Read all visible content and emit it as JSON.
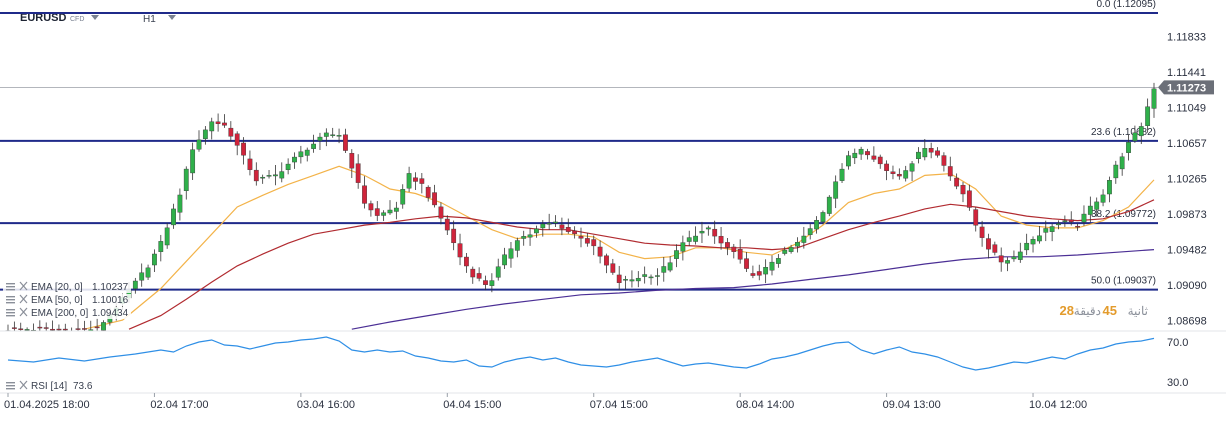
{
  "header": {
    "symbol": "EURUSD",
    "instrument_type": "CFD",
    "timeframe": "H1"
  },
  "colors": {
    "bull": "#2fb04a",
    "bear": "#d0243b",
    "fib": "#1f2a8a",
    "ema20": "#f3b349",
    "ema50": "#b12b30",
    "ema200": "#4b2f95",
    "rsi": "#2f8fe6",
    "price_tag": "#6b6f78"
  },
  "chart_data": {
    "type": "candlestick",
    "ylim": [
      1.0858,
      1.1215
    ],
    "y_ticks": [
      {
        "value": 1.11833,
        "label": "1.11833"
      },
      {
        "value": 1.11441,
        "label": "1.11441"
      },
      {
        "value": 1.11049,
        "label": "1.11049"
      },
      {
        "value": 1.10657,
        "label": "1.10657"
      },
      {
        "value": 1.10265,
        "label": "1.10265"
      },
      {
        "value": 1.09873,
        "label": "1.09873"
      },
      {
        "value": 1.09482,
        "label": "1.09482"
      },
      {
        "value": 1.0909,
        "label": "1.09090"
      },
      {
        "value": 1.08698,
        "label": "1.08698"
      }
    ],
    "x_ticks": [
      {
        "index": 0,
        "label": "01.04.2025  18:00"
      },
      {
        "index": 23,
        "label": "02.04  17:00"
      },
      {
        "index": 46,
        "label": "03.04  16:00"
      },
      {
        "index": 69,
        "label": "04.04  15:00"
      },
      {
        "index": 92,
        "label": "07.04  15:00"
      },
      {
        "index": 115,
        "label": "08.04  14:00"
      },
      {
        "index": 138,
        "label": "09.04  13:00"
      },
      {
        "index": 161,
        "label": "10.04  12:00"
      }
    ],
    "current_price": {
      "value": 1.11273,
      "label": "1.11273"
    },
    "fib_levels": [
      {
        "value": 1.12095,
        "label": "0.0 (1.12095)"
      },
      {
        "value": 1.10682,
        "label": "23.6 (1.10682)"
      },
      {
        "value": 1.09772,
        "label": "38.2 (1.09772)"
      },
      {
        "value": 1.09037,
        "label": "50.0 (1.09037)"
      }
    ],
    "indicators": [
      {
        "key": "ema20",
        "label": "EMA [20, 0]",
        "value": "1.10237"
      },
      {
        "key": "ema50",
        "label": "EMA [50, 0]",
        "value": "1.10016"
      },
      {
        "key": "ema200",
        "label": "EMA [200, 0]",
        "value": "1.09434"
      }
    ],
    "rsi": {
      "label": "RSI [14]",
      "value": "73.6",
      "ylim": [
        20,
        80
      ],
      "ticks": [
        {
          "value": 70,
          "label": "70.0"
        },
        {
          "value": 30,
          "label": "30.0"
        }
      ]
    },
    "close_path": [
      [
        0,
        1.086
      ],
      [
        14,
        1.086
      ],
      [
        18,
        1.0893
      ],
      [
        22,
        1.093
      ],
      [
        24,
        1.0955
      ],
      [
        27,
        1.101
      ],
      [
        29,
        1.106
      ],
      [
        32,
        1.109
      ],
      [
        34,
        1.1085
      ],
      [
        35,
        1.1075
      ],
      [
        37,
        1.105
      ],
      [
        39,
        1.1025
      ],
      [
        42,
        1.103
      ],
      [
        46,
        1.1055
      ],
      [
        50,
        1.1075
      ],
      [
        52,
        1.1075
      ],
      [
        54,
        1.104
      ],
      [
        56,
        1.1
      ],
      [
        58,
        1.0985
      ],
      [
        61,
        1.0995
      ],
      [
        63,
        1.103
      ],
      [
        65,
        1.102
      ],
      [
        67,
        1.0995
      ],
      [
        69,
        1.097
      ],
      [
        71,
        1.094
      ],
      [
        73,
        1.092
      ],
      [
        75,
        1.091
      ],
      [
        76,
        1.0915
      ],
      [
        78,
        1.094
      ],
      [
        80,
        1.096
      ],
      [
        82,
        1.0965
      ],
      [
        84,
        1.0975
      ],
      [
        86,
        1.0978
      ],
      [
        88,
        1.0968
      ],
      [
        90,
        1.0962
      ],
      [
        92,
        1.095
      ],
      [
        94,
        1.093
      ],
      [
        96,
        1.0912
      ],
      [
        98,
        1.0915
      ],
      [
        100,
        1.092
      ],
      [
        102,
        1.092
      ],
      [
        104,
        1.0935
      ],
      [
        106,
        1.0955
      ],
      [
        108,
        1.0965
      ],
      [
        110,
        1.097
      ],
      [
        112,
        1.0955
      ],
      [
        114,
        1.0945
      ],
      [
        116,
        1.0925
      ],
      [
        118,
        1.0918
      ],
      [
        120,
        1.0935
      ],
      [
        122,
        1.0945
      ],
      [
        124,
        1.0955
      ],
      [
        126,
        1.097
      ],
      [
        128,
        1.099
      ],
      [
        130,
        1.1025
      ],
      [
        132,
        1.105
      ],
      [
        134,
        1.106
      ],
      [
        136,
        1.105
      ],
      [
        138,
        1.1035
      ],
      [
        140,
        1.103
      ],
      [
        142,
        1.1045
      ],
      [
        144,
        1.1062
      ],
      [
        146,
        1.1052
      ],
      [
        148,
        1.103
      ],
      [
        150,
        1.101
      ],
      [
        152,
        1.0975
      ],
      [
        154,
        1.095
      ],
      [
        156,
        1.0935
      ],
      [
        158,
        1.094
      ],
      [
        160,
        1.0955
      ],
      [
        162,
        1.0965
      ],
      [
        164,
        1.0975
      ],
      [
        166,
        1.0978
      ],
      [
        168,
        1.0975
      ],
      [
        170,
        1.0995
      ],
      [
        172,
        1.101
      ],
      [
        174,
        1.104
      ],
      [
        176,
        1.1065
      ],
      [
        178,
        1.1085
      ],
      [
        180,
        1.1127
      ]
    ],
    "ema20_path": [
      [
        12,
        1.086
      ],
      [
        18,
        1.087
      ],
      [
        24,
        1.0905
      ],
      [
        28,
        1.0935
      ],
      [
        32,
        1.0965
      ],
      [
        36,
        1.0995
      ],
      [
        40,
        1.1008
      ],
      [
        44,
        1.102
      ],
      [
        48,
        1.103
      ],
      [
        52,
        1.104
      ],
      [
        56,
        1.103
      ],
      [
        60,
        1.1015
      ],
      [
        64,
        1.101
      ],
      [
        68,
        1.1
      ],
      [
        72,
        1.0985
      ],
      [
        76,
        1.097
      ],
      [
        80,
        1.096
      ],
      [
        84,
        1.0965
      ],
      [
        88,
        1.0965
      ],
      [
        92,
        1.0962
      ],
      [
        96,
        1.0945
      ],
      [
        100,
        1.0938
      ],
      [
        104,
        1.094
      ],
      [
        108,
        1.095
      ],
      [
        112,
        1.095
      ],
      [
        116,
        1.0945
      ],
      [
        120,
        1.0942
      ],
      [
        124,
        1.0955
      ],
      [
        128,
        1.0975
      ],
      [
        132,
        1.1
      ],
      [
        136,
        1.101
      ],
      [
        140,
        1.1015
      ],
      [
        144,
        1.103
      ],
      [
        148,
        1.1032
      ],
      [
        152,
        1.1015
      ],
      [
        156,
        1.0985
      ],
      [
        160,
        1.0975
      ],
      [
        164,
        1.0972
      ],
      [
        168,
        1.0972
      ],
      [
        172,
        1.098
      ],
      [
        176,
        1.0995
      ],
      [
        180,
        1.1025
      ]
    ],
    "ema50_path": [
      [
        19,
        1.086
      ],
      [
        24,
        1.0875
      ],
      [
        28,
        1.0893
      ],
      [
        32,
        1.0912
      ],
      [
        36,
        1.093
      ],
      [
        40,
        1.0943
      ],
      [
        44,
        1.0955
      ],
      [
        48,
        1.0965
      ],
      [
        52,
        1.097
      ],
      [
        56,
        1.0975
      ],
      [
        60,
        1.0978
      ],
      [
        64,
        1.0982
      ],
      [
        68,
        1.0985
      ],
      [
        72,
        1.0983
      ],
      [
        76,
        1.0978
      ],
      [
        80,
        1.0973
      ],
      [
        84,
        1.097
      ],
      [
        88,
        1.097
      ],
      [
        92,
        1.0965
      ],
      [
        96,
        1.096
      ],
      [
        100,
        1.0955
      ],
      [
        104,
        1.0953
      ],
      [
        108,
        1.0952
      ],
      [
        112,
        1.095
      ],
      [
        116,
        1.095
      ],
      [
        120,
        1.0948
      ],
      [
        124,
        1.095
      ],
      [
        128,
        1.096
      ],
      [
        132,
        1.097
      ],
      [
        136,
        1.0978
      ],
      [
        140,
        1.0985
      ],
      [
        144,
        1.0993
      ],
      [
        148,
        1.0998
      ],
      [
        152,
        1.0995
      ],
      [
        156,
        1.099
      ],
      [
        160,
        1.0985
      ],
      [
        164,
        1.0982
      ],
      [
        168,
        1.098
      ],
      [
        172,
        1.0982
      ],
      [
        176,
        1.099
      ],
      [
        180,
        1.1003
      ]
    ],
    "ema200_path": [
      [
        54,
        1.086
      ],
      [
        60,
        1.0868
      ],
      [
        66,
        1.0875
      ],
      [
        72,
        1.0882
      ],
      [
        78,
        1.0888
      ],
      [
        84,
        1.0893
      ],
      [
        90,
        1.0898
      ],
      [
        96,
        1.09
      ],
      [
        102,
        1.0903
      ],
      [
        108,
        1.0905
      ],
      [
        114,
        1.0906
      ],
      [
        120,
        1.091
      ],
      [
        126,
        1.0915
      ],
      [
        132,
        1.092
      ],
      [
        138,
        1.0926
      ],
      [
        144,
        1.0932
      ],
      [
        150,
        1.0937
      ],
      [
        156,
        1.094
      ],
      [
        162,
        1.094
      ],
      [
        168,
        1.0942
      ],
      [
        174,
        1.0945
      ],
      [
        180,
        1.0948
      ]
    ],
    "rsi_path": [
      [
        0,
        52
      ],
      [
        4,
        50
      ],
      [
        8,
        54
      ],
      [
        12,
        51
      ],
      [
        16,
        55
      ],
      [
        20,
        58
      ],
      [
        24,
        62
      ],
      [
        26,
        60
      ],
      [
        28,
        66
      ],
      [
        30,
        70
      ],
      [
        32,
        72
      ],
      [
        34,
        67
      ],
      [
        36,
        66
      ],
      [
        38,
        63
      ],
      [
        40,
        66
      ],
      [
        42,
        69
      ],
      [
        44,
        70
      ],
      [
        46,
        72
      ],
      [
        48,
        73
      ],
      [
        50,
        75
      ],
      [
        52,
        71
      ],
      [
        54,
        62
      ],
      [
        56,
        60
      ],
      [
        58,
        62
      ],
      [
        60,
        60
      ],
      [
        62,
        61
      ],
      [
        64,
        56
      ],
      [
        66,
        54
      ],
      [
        68,
        51
      ],
      [
        70,
        50
      ],
      [
        72,
        52
      ],
      [
        74,
        46
      ],
      [
        76,
        45
      ],
      [
        78,
        50
      ],
      [
        80,
        53
      ],
      [
        82,
        55
      ],
      [
        84,
        52
      ],
      [
        86,
        54
      ],
      [
        88,
        50
      ],
      [
        90,
        47
      ],
      [
        92,
        46
      ],
      [
        94,
        45
      ],
      [
        96,
        47
      ],
      [
        98,
        50
      ],
      [
        100,
        52
      ],
      [
        102,
        54
      ],
      [
        104,
        50
      ],
      [
        106,
        46
      ],
      [
        108,
        48
      ],
      [
        110,
        49
      ],
      [
        112,
        47
      ],
      [
        114,
        45
      ],
      [
        116,
        44
      ],
      [
        118,
        48
      ],
      [
        120,
        53
      ],
      [
        122,
        55
      ],
      [
        124,
        58
      ],
      [
        126,
        62
      ],
      [
        128,
        66
      ],
      [
        130,
        69
      ],
      [
        132,
        70
      ],
      [
        134,
        62
      ],
      [
        136,
        58
      ],
      [
        138,
        62
      ],
      [
        140,
        65
      ],
      [
        142,
        60
      ],
      [
        144,
        58
      ],
      [
        146,
        55
      ],
      [
        148,
        50
      ],
      [
        150,
        45
      ],
      [
        152,
        42
      ],
      [
        154,
        44
      ],
      [
        156,
        47
      ],
      [
        158,
        50
      ],
      [
        160,
        49
      ],
      [
        162,
        52
      ],
      [
        164,
        55
      ],
      [
        166,
        53
      ],
      [
        168,
        58
      ],
      [
        170,
        62
      ],
      [
        172,
        64
      ],
      [
        174,
        68
      ],
      [
        176,
        70
      ],
      [
        178,
        71
      ],
      [
        180,
        73.6
      ]
    ]
  },
  "countdown": {
    "minutes": "28",
    "seconds": "45"
  }
}
